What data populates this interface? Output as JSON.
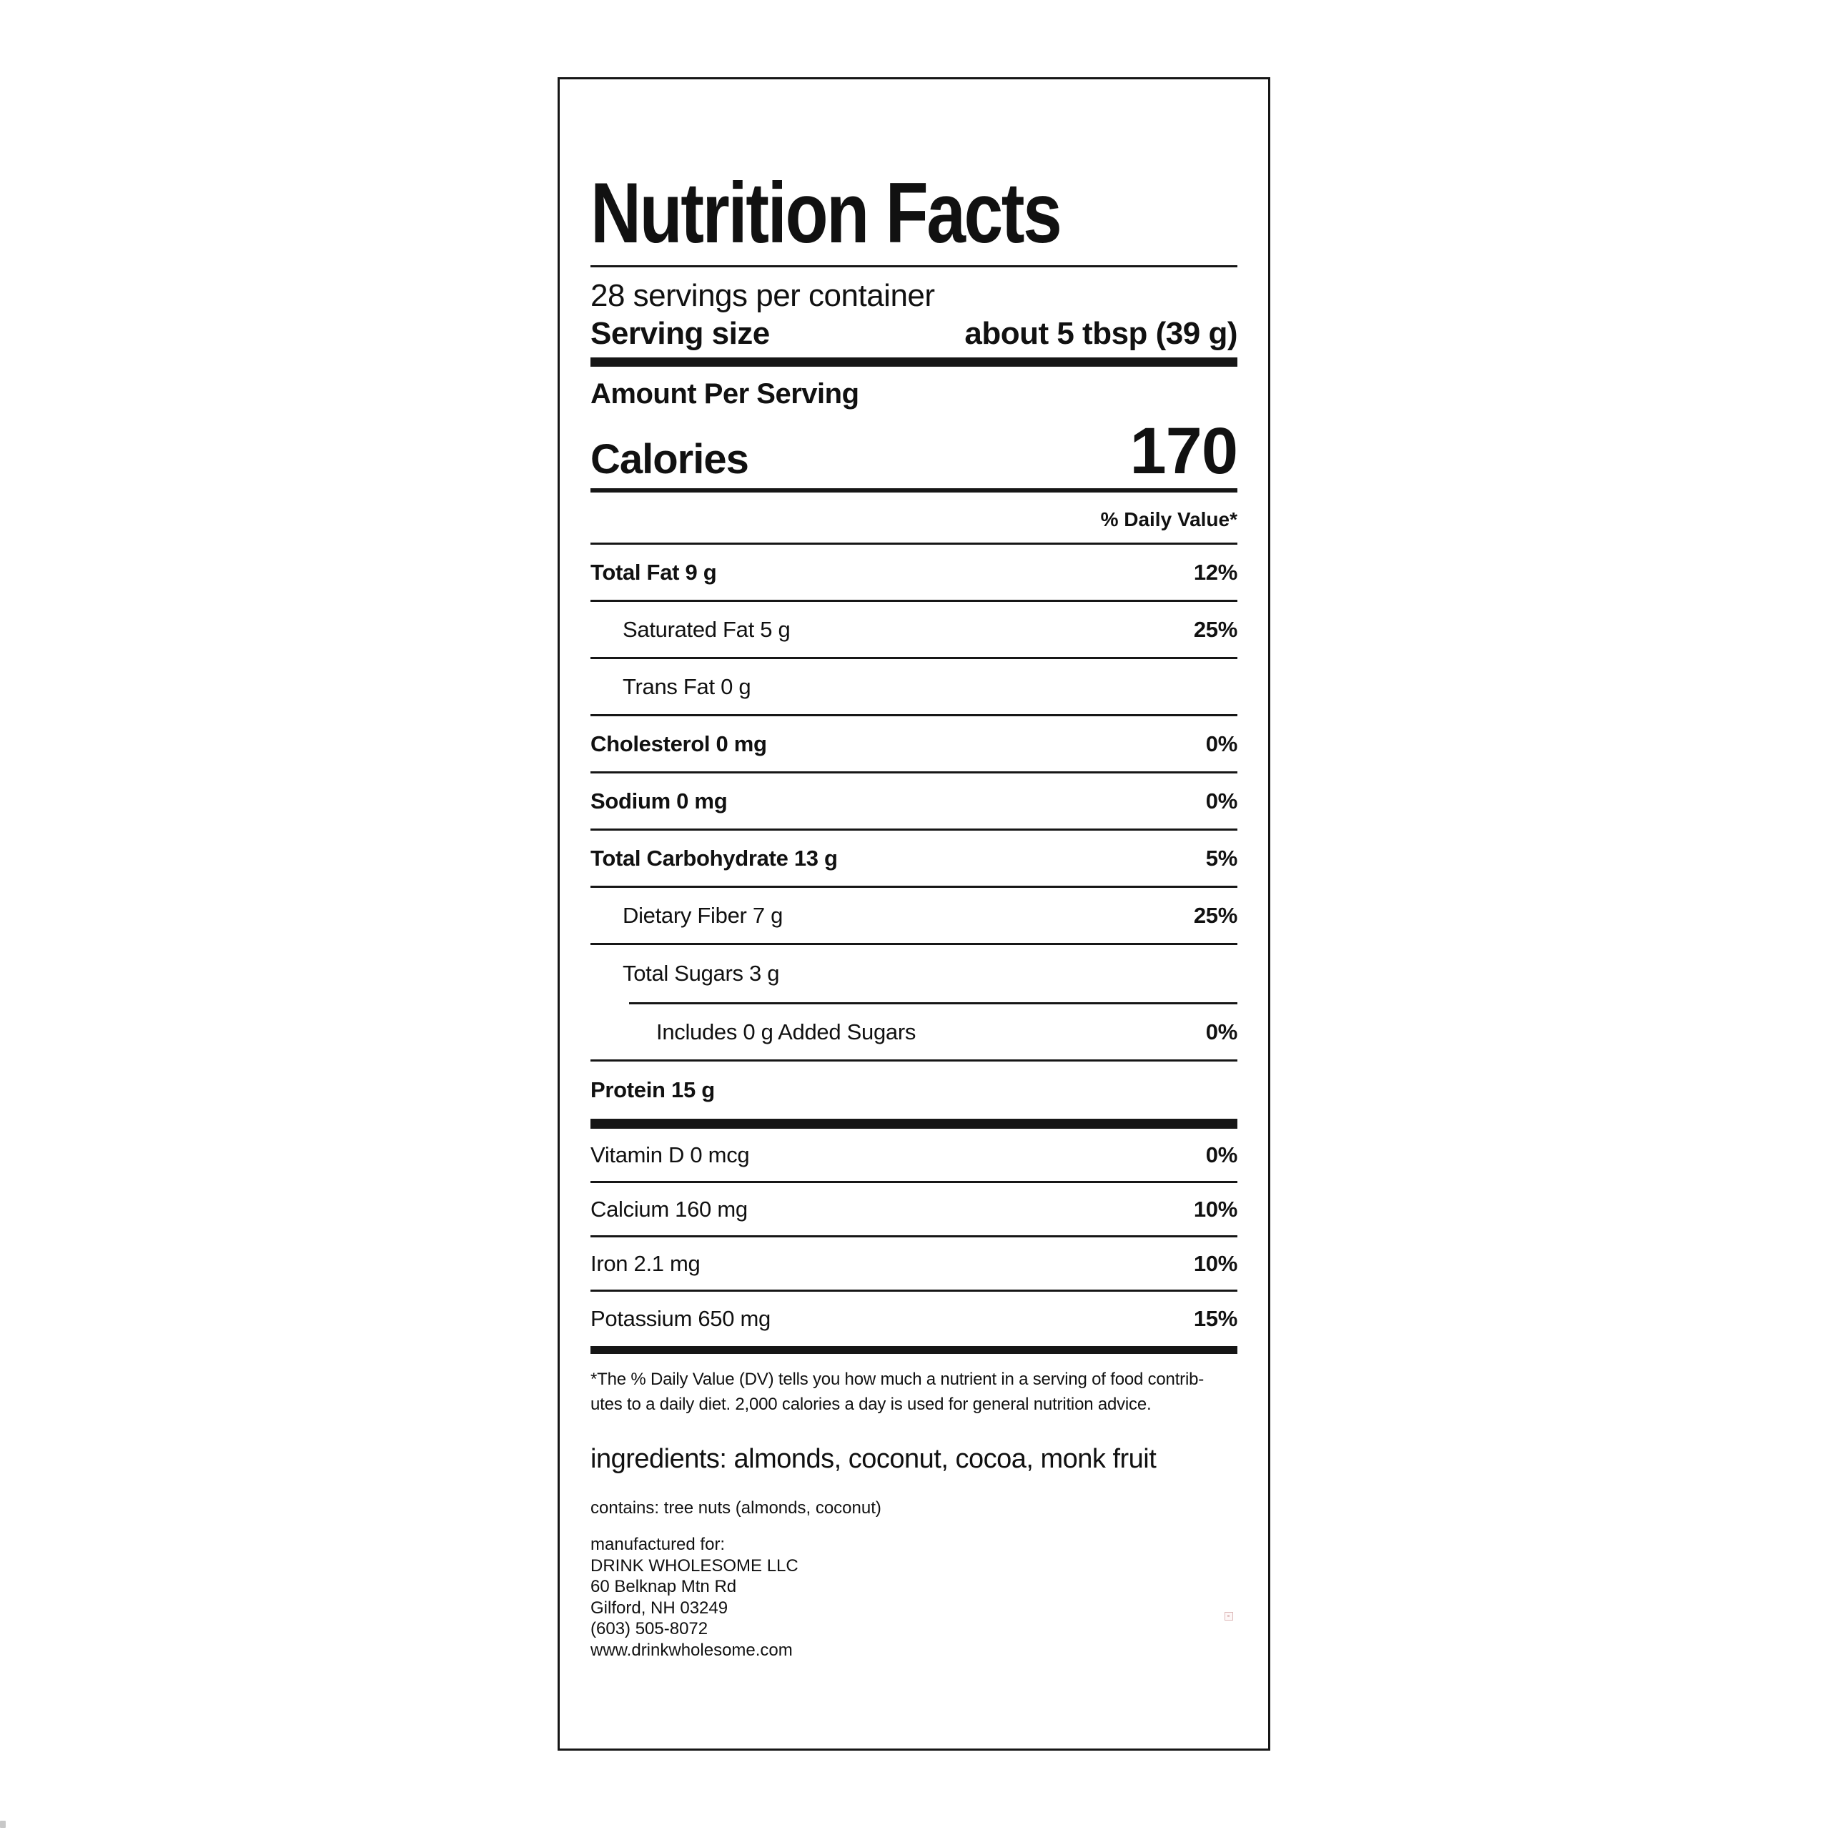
{
  "label": {
    "title": "Nutrition Facts",
    "servings_per_container": "28 servings per container",
    "serving_size_label": "Serving size",
    "serving_size_value": "about 5 tbsp (39 g)",
    "amount_per_serving": "Amount Per Serving",
    "calories_label": "Calories",
    "calories_value": "170",
    "daily_value_header": "% Daily Value*",
    "rows": [
      {
        "label": "Total Fat 9 g",
        "pct": "12%"
      },
      {
        "label": "Saturated Fat 5 g",
        "pct": "25%"
      },
      {
        "label": "Trans Fat 0 g",
        "pct": ""
      },
      {
        "label": "Cholesterol 0 mg",
        "pct": "0%"
      },
      {
        "label": "Sodium 0 mg",
        "pct": "0%"
      },
      {
        "label": "Total Carbohydrate 13 g",
        "pct": "5%"
      },
      {
        "label": "Dietary Fiber 7 g",
        "pct": "25%"
      },
      {
        "label": "Total Sugars 3 g",
        "pct": ""
      },
      {
        "label": "Includes 0 g Added Sugars",
        "pct": "0%"
      },
      {
        "label": "Protein 15 g",
        "pct": ""
      }
    ],
    "minerals": [
      {
        "label": "Vitamin D 0 mcg",
        "pct": "0%"
      },
      {
        "label": "Calcium 160 mg",
        "pct": "10%"
      },
      {
        "label": "Iron 2.1 mg",
        "pct": "10%"
      },
      {
        "label": "Potassium 650 mg",
        "pct": "15%"
      }
    ],
    "footnote_line1": "*The % Daily Value (DV) tells you how much a nutrient in a serving of food contrib-",
    "footnote_line2": "utes to a daily diet. 2,000 calories a day is used for general nutrition advice.",
    "ingredients": "ingredients: almonds, coconut, cocoa, monk fruit",
    "contains": "contains: tree nuts (almonds, coconut)",
    "manufactured": {
      "line1": "manufactured for:",
      "line2": "DRINK WHOLESOME LLC",
      "line3": "60 Belknap Mtn Rd",
      "line4": "Gilford, NH 03249",
      "line5": "(603) 505-8072",
      "line6": "www.drinkwholesome.com"
    },
    "colors": {
      "ink": "#161616",
      "background": "#ffffff"
    }
  }
}
